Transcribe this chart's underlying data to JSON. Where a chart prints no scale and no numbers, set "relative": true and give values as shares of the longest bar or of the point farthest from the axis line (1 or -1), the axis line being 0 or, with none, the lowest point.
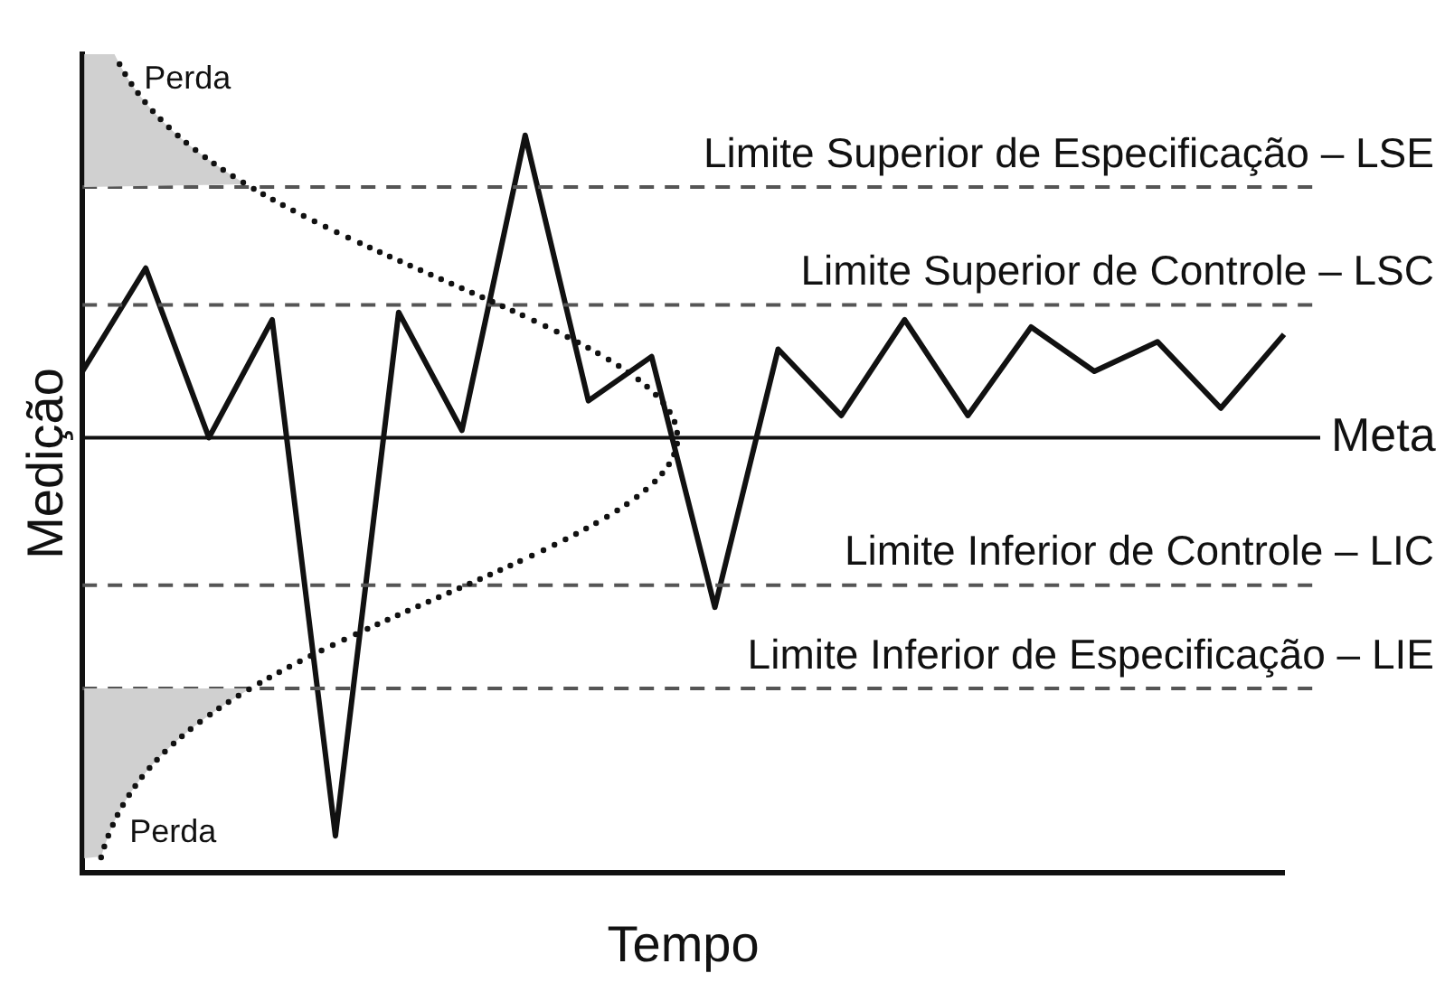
{
  "chart_data": {
    "type": "line",
    "relative": true,
    "xlabel": "Tempo",
    "ylabel": "Medição",
    "categories": [
      null,
      null,
      null,
      null,
      null,
      null,
      null,
      null,
      null,
      null,
      null,
      null,
      null,
      null,
      null,
      null,
      null,
      null,
      null,
      null
    ],
    "series": [
      {
        "color": "#111111",
        "values": [
          0.68,
          0.82,
          0.59,
          0.75,
          0.05,
          0.76,
          0.6,
          1,
          0.64,
          0.7,
          0.36,
          0.71,
          0.62,
          0.75,
          0.62,
          0.74,
          0.68,
          0.72,
          0.63,
          0.73
        ]
      }
    ],
    "marker": "none",
    "line_style": "solid",
    "grid": false,
    "legend": false,
    "ref_lines": [
      {
        "axis": "y",
        "value": 0.93,
        "label": "Limite Superior de Especificação – LSE",
        "color": "#555555",
        "line_style": "dashed"
      },
      {
        "axis": "y",
        "value": 0.77,
        "label": "Limite Superior de Controle – LSC",
        "color": "#555555",
        "line_style": "dashed"
      },
      {
        "axis": "y",
        "value": 0.59,
        "label": "Meta",
        "color": "#111111",
        "line_style": "solid"
      },
      {
        "axis": "y",
        "value": 0.39,
        "label": "Limite Inferior de Controle – LIC",
        "color": "#555555",
        "line_style": "dashed"
      },
      {
        "axis": "y",
        "value": 0.25,
        "label": "Limite Inferior de Especificação – LIE",
        "color": "#555555",
        "line_style": "dashed"
      }
    ],
    "annotations": [
      "Perda",
      "Perda"
    ]
  }
}
